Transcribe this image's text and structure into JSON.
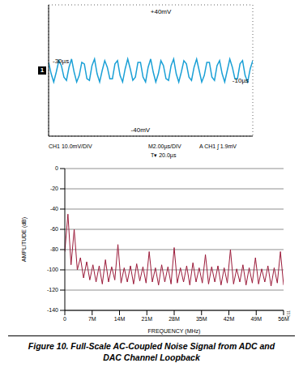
{
  "chart_data": [
    {
      "type": "line",
      "x": [
        -30,
        -29.75,
        -29.5,
        -29.25,
        -29,
        -28.75,
        -28.5,
        -28.25,
        -28,
        -27.75,
        -27.5,
        -27.25,
        -27,
        -26.75,
        -26.5,
        -26.25,
        -26,
        -25.75,
        -25.5,
        -25.25,
        -25,
        -24.75,
        -24.5,
        -24.25,
        -24,
        -23.75,
        -23.5,
        -23.25,
        -23,
        -22.75,
        -22.5,
        -22.25,
        -22,
        -21.75,
        -21.5,
        -21.25,
        -21,
        -20.75,
        -20.5,
        -20.25,
        -20,
        -19.75,
        -19.5,
        -19.25,
        -19,
        -18.75,
        -18.5,
        -18.25,
        -18,
        -17.75,
        -17.5,
        -17.25,
        -17,
        -16.75,
        -16.5,
        -16.25,
        -16,
        -15.75,
        -15.5,
        -15.25,
        -15,
        -14.75,
        -14.5,
        -14.25,
        -14,
        -13.75,
        -13.5,
        -13.25,
        -13,
        -12.75,
        -12.5,
        -12.25,
        -12,
        -11.75,
        -11.5,
        -11.25,
        -11,
        -10.75,
        -10.5,
        -10.25,
        -10
      ],
      "values": [
        5,
        -2,
        -7,
        -1,
        6,
        3,
        -4,
        -6,
        2,
        7,
        -1,
        -7,
        -3,
        5,
        4,
        -5,
        -6,
        3,
        7,
        -2,
        -7,
        0,
        6,
        2,
        -5,
        -5,
        4,
        6,
        -3,
        -7,
        1,
        7,
        1,
        -6,
        -4,
        5,
        5,
        -4,
        -7,
        2,
        7,
        -1,
        -7,
        -2,
        6,
        3,
        -5,
        -6,
        3,
        7,
        -2,
        -7,
        -1,
        6,
        4,
        -4,
        -6,
        2,
        7,
        0,
        -7,
        -3,
        5,
        5,
        -4,
        -6,
        3,
        6,
        -2,
        -7,
        0,
        7,
        2,
        -5,
        -5,
        4,
        6,
        -3,
        -7,
        1,
        6
      ],
      "color": "#1aa0d6",
      "xlim": [
        -30,
        -10
      ],
      "ylim": [
        -40,
        40
      ],
      "xticks": [
        -30,
        -28,
        -26,
        -24,
        -22,
        -20,
        -18,
        -16,
        -14,
        -12,
        -10
      ],
      "yticks": [
        -40,
        -30,
        -20,
        -10,
        0,
        10,
        20,
        30,
        40
      ],
      "grid": true,
      "tick_labels": false,
      "annotations": [
        {
          "text": "+40mV",
          "x": -19,
          "y": 40
        },
        {
          "text": "-40mV",
          "x": -21,
          "y": -40
        },
        {
          "text": "-30µs",
          "x": -30,
          "y": 6
        },
        {
          "text": "-10µs",
          "x": -10,
          "y": -6
        }
      ],
      "channel": "1",
      "footer": [
        "CH1 10.0mV/DIV",
        "M2.00µs/DIV",
        "A CH1 ʃ 1.9mV",
        "T▾ 20.0µs"
      ]
    },
    {
      "type": "line",
      "x_label": "FREQUENCY (MHz)",
      "y_label": "AMPLITUDE (dB)",
      "x": [
        0,
        0.8,
        1.6,
        2.4,
        3.2,
        4,
        4.8,
        5.6,
        6.4,
        7.2,
        8,
        8.8,
        9.6,
        10.4,
        11.2,
        12,
        12.8,
        13.6,
        14.4,
        15.2,
        16,
        16.8,
        17.6,
        18.4,
        19.2,
        20,
        20.8,
        21.6,
        22.4,
        23.2,
        24,
        24.8,
        25.6,
        26.4,
        27.2,
        28,
        28.8,
        29.6,
        30.4,
        31.2,
        32,
        32.8,
        33.6,
        34.4,
        35.2,
        36,
        36.8,
        37.6,
        38.4,
        39.2,
        40,
        40.8,
        41.6,
        42.4,
        43.2,
        44,
        44.8,
        45.6,
        46.4,
        47.2,
        48,
        48.8,
        49.6,
        50.4,
        51.2,
        52,
        52.8,
        53.6,
        54.4,
        55.2,
        56
      ],
      "values": [
        -82,
        -45,
        -95,
        -60,
        -100,
        -88,
        -108,
        -92,
        -110,
        -95,
        -112,
        -96,
        -114,
        -90,
        -112,
        -97,
        -110,
        -75,
        -113,
        -98,
        -112,
        -96,
        -114,
        -94,
        -111,
        -97,
        -113,
        -82,
        -112,
        -98,
        -115,
        -95,
        -112,
        -97,
        -114,
        -78,
        -113,
        -98,
        -112,
        -96,
        -115,
        -93,
        -112,
        -98,
        -113,
        -85,
        -114,
        -97,
        -112,
        -96,
        -115,
        -98,
        -113,
        -80,
        -114,
        -99,
        -112,
        -95,
        -115,
        -98,
        -113,
        -88,
        -114,
        -99,
        -112,
        -96,
        -116,
        -98,
        -113,
        -82,
        -115
      ],
      "color": "#9b1b3a",
      "xlim": [
        0,
        56
      ],
      "ylim": [
        -140,
        0
      ],
      "xticks": [
        0,
        {
          "value": 7,
          "label": "7M"
        },
        {
          "value": 14,
          "label": "14M"
        },
        {
          "value": 21,
          "label": "21M"
        },
        {
          "value": 28,
          "label": "28M"
        },
        {
          "value": 35,
          "label": "35M"
        },
        {
          "value": 42,
          "label": "42M"
        },
        {
          "value": 49,
          "label": "49M"
        },
        {
          "value": 56,
          "label": "56M"
        }
      ],
      "yticks": [
        -140,
        -120,
        -100,
        -80,
        -60,
        -40,
        -20,
        0
      ],
      "grid": true
    }
  ],
  "caption": "Figure 10. Full-Scale AC-Coupled Noise Signal from ADC and DAC Channel Loopback",
  "figure_code": "011"
}
